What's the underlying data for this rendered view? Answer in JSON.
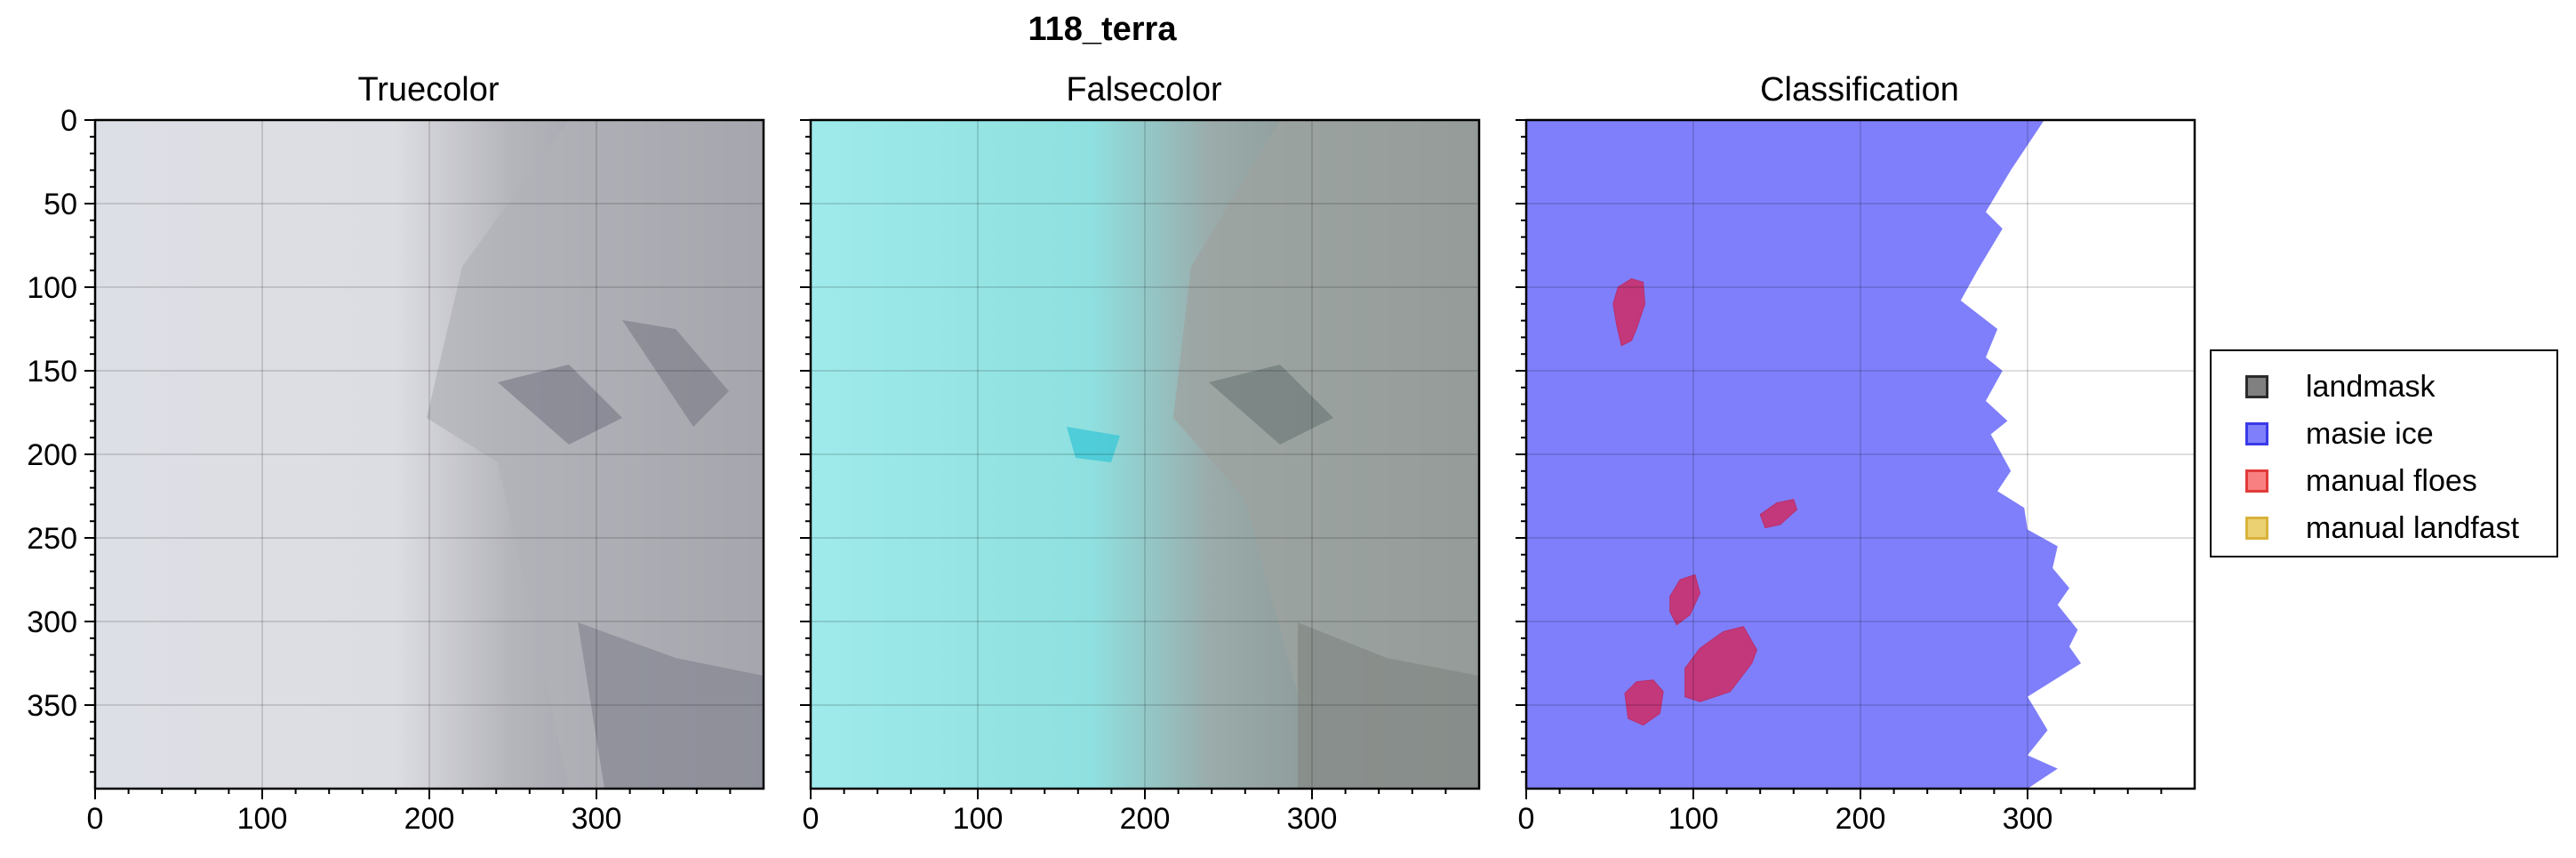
{
  "figure": {
    "suptitle": "118_terra"
  },
  "panels": [
    {
      "title": "Truecolor",
      "kind": "truecolor"
    },
    {
      "title": "Falsecolor",
      "kind": "falsecolor"
    },
    {
      "title": "Classification",
      "kind": "classification"
    }
  ],
  "legend": {
    "placement": "right",
    "items": [
      {
        "label": "landmask",
        "color": "#808080",
        "border": "#2b2b2b"
      },
      {
        "label": "masie ice",
        "color": "#7f7ffb",
        "border": "#3a3ae8"
      },
      {
        "label": "manual floes",
        "color": "#f98080",
        "border": "#e23a3a"
      },
      {
        "label": "manual landfast",
        "color": "#ecd173",
        "border": "#d9b33c"
      }
    ]
  },
  "chart_data": [
    {
      "type": "heatmap",
      "title": "Truecolor",
      "xlim": [
        0,
        400
      ],
      "ylim": [
        400,
        0
      ],
      "xticks": [
        0,
        100,
        200,
        300
      ],
      "yticks": [
        0,
        50,
        100,
        150,
        200,
        250,
        300,
        350
      ],
      "grid": true
    },
    {
      "type": "heatmap",
      "title": "Falsecolor",
      "xlim": [
        0,
        400
      ],
      "ylim": [
        400,
        0
      ],
      "xticks": [
        0,
        100,
        200,
        300
      ],
      "grid": true
    },
    {
      "type": "heatmap",
      "title": "Classification",
      "xlim": [
        0,
        400
      ],
      "ylim": [
        400,
        0
      ],
      "xticks": [
        0,
        100,
        200,
        300
      ],
      "grid": true,
      "masie_ice_edge": [
        [
          310,
          0
        ],
        [
          290,
          30
        ],
        [
          275,
          55
        ],
        [
          285,
          65
        ],
        [
          270,
          90
        ],
        [
          260,
          108
        ],
        [
          282,
          125
        ],
        [
          275,
          142
        ],
        [
          285,
          150
        ],
        [
          275,
          168
        ],
        [
          288,
          180
        ],
        [
          278,
          188
        ],
        [
          290,
          210
        ],
        [
          282,
          222
        ],
        [
          298,
          232
        ],
        [
          300,
          245
        ],
        [
          318,
          255
        ],
        [
          315,
          268
        ],
        [
          325,
          280
        ],
        [
          318,
          290
        ],
        [
          330,
          305
        ],
        [
          325,
          315
        ],
        [
          332,
          325
        ],
        [
          300,
          345
        ],
        [
          312,
          365
        ],
        [
          300,
          380
        ],
        [
          318,
          388
        ],
        [
          300,
          400
        ]
      ],
      "manual_floes": [
        {
          "name": "floe-1",
          "points": [
            [
              52,
              110
            ],
            [
              55,
              100
            ],
            [
              63,
              95
            ],
            [
              70,
              97
            ],
            [
              71,
              110
            ],
            [
              66,
              125
            ],
            [
              63,
              132
            ],
            [
              57,
              135
            ],
            [
              54,
              122
            ]
          ]
        },
        {
          "name": "floe-2",
          "points": [
            [
              140,
              236
            ],
            [
              150,
              229
            ],
            [
              160,
              227
            ],
            [
              162,
              233
            ],
            [
              152,
              242
            ],
            [
              143,
              244
            ]
          ]
        },
        {
          "name": "floe-3",
          "points": [
            [
              86,
              285
            ],
            [
              92,
              275
            ],
            [
              101,
              272
            ],
            [
              104,
              283
            ],
            [
              98,
              296
            ],
            [
              90,
              302
            ],
            [
              86,
              294
            ]
          ]
        },
        {
          "name": "floe-4",
          "points": [
            [
              95,
              328
            ],
            [
              104,
              316
            ],
            [
              118,
              306
            ],
            [
              130,
              303
            ],
            [
              138,
              317
            ],
            [
              135,
              325
            ],
            [
              122,
              342
            ],
            [
              104,
              348
            ],
            [
              95,
              345
            ]
          ]
        },
        {
          "name": "floe-5",
          "points": [
            [
              59,
              343
            ],
            [
              66,
              336
            ],
            [
              76,
              335
            ],
            [
              82,
              342
            ],
            [
              80,
              355
            ],
            [
              70,
              362
            ],
            [
              61,
              358
            ]
          ]
        }
      ]
    }
  ]
}
